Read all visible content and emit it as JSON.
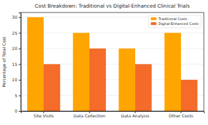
{
  "chart_data": {
    "type": "bar",
    "title": "Cost Breakdown: Traditional vs Digital-Enhanced Clinical Trials",
    "y_label": "Percentage of Total Cost",
    "categories": [
      "Site Visits",
      "Data Collection",
      "Data Analysis",
      "Other Costs"
    ],
    "series": [
      {
        "name": "Traditional Costs",
        "color": "#ffa500",
        "values": [
          30,
          25,
          20,
          25
        ]
      },
      {
        "name": "Digital-Enhanced Costs",
        "color": "#f46b2a",
        "values": [
          15,
          20,
          15,
          10
        ]
      }
    ],
    "ylim": [
      0,
      31.5
    ],
    "yticks": [
      0,
      5,
      10,
      15,
      20,
      25,
      30
    ],
    "grid": true,
    "legend": "upper right"
  }
}
